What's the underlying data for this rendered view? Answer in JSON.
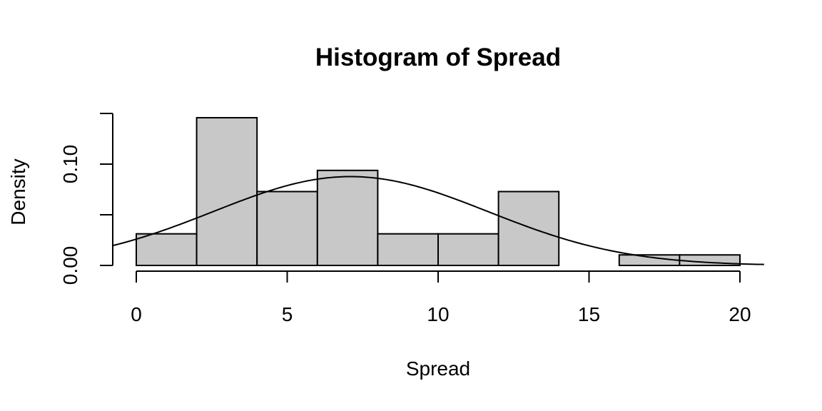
{
  "chart_data": {
    "type": "bar",
    "title": "Histogram of Spread",
    "xlabel": "Spread",
    "ylabel": "Density",
    "bins": [
      {
        "start": 0,
        "end": 2,
        "density": 0.0312
      },
      {
        "start": 2,
        "end": 4,
        "density": 0.1458
      },
      {
        "start": 4,
        "end": 6,
        "density": 0.0729
      },
      {
        "start": 6,
        "end": 8,
        "density": 0.0938
      },
      {
        "start": 8,
        "end": 10,
        "density": 0.0312
      },
      {
        "start": 10,
        "end": 12,
        "density": 0.0312
      },
      {
        "start": 12,
        "end": 14,
        "density": 0.0729
      },
      {
        "start": 14,
        "end": 16,
        "density": 0.0
      },
      {
        "start": 16,
        "end": 18,
        "density": 0.0104
      },
      {
        "start": 18,
        "end": 20,
        "density": 0.0104
      }
    ],
    "x_ticks": [
      "0",
      "5",
      "10",
      "15",
      "20"
    ],
    "x_tick_values": [
      0,
      5,
      10,
      15,
      20
    ],
    "y_ticks": [
      "0.00",
      "0.10"
    ],
    "y_tick_values": [
      0.0,
      0.05,
      0.1,
      0.15
    ],
    "y_tick_labels_shown": [
      "0.00",
      "",
      "0.10",
      ""
    ],
    "xlim": [
      -0.8,
      20.8
    ],
    "ylim": [
      0,
      0.15
    ],
    "normal_curve": {
      "mean": 7.1,
      "sd": 4.55
    },
    "bar_color": "#c8c8c8",
    "grid": false,
    "legend": "none"
  }
}
